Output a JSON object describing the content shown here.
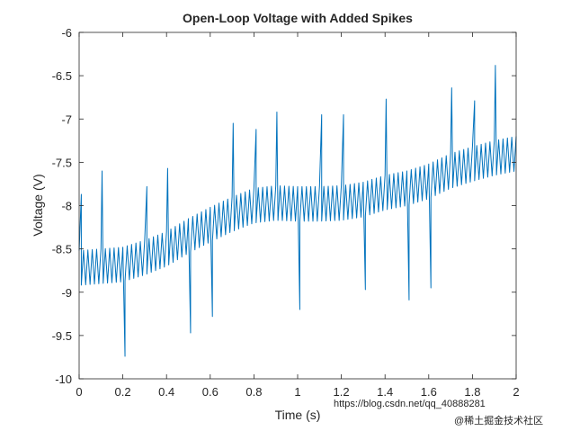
{
  "chart_data": {
    "type": "line",
    "title": "Open-Loop Voltage with Added Spikes",
    "xlabel": "Time (s)",
    "ylabel": "Voltage (V)",
    "xlim": [
      0,
      2
    ],
    "ylim": [
      -10,
      -6
    ],
    "xticks": [
      0,
      0.2,
      0.4,
      0.6,
      0.8,
      1,
      1.2,
      1.4,
      1.6,
      1.8,
      2
    ],
    "xtick_labels": [
      "0",
      "0.2",
      "0.4",
      "0.6",
      "0.8",
      "1",
      "1.2",
      "1.4",
      "1.6",
      "1.8",
      "2"
    ],
    "yticks": [
      -10,
      -9.5,
      -9,
      -8.5,
      -8,
      -7.5,
      -7,
      -6.5,
      -6
    ],
    "ytick_labels": [
      "-10",
      "-9.5",
      "-9",
      "-8.5",
      "-8",
      "-7.5",
      "-7",
      "-6.5",
      "-6"
    ],
    "grid": false,
    "line_color": "#0072BD",
    "series": [
      {
        "baseline": {
          "x": [
            0,
            0.1,
            0.2,
            0.3,
            0.4,
            0.5,
            0.6,
            0.7,
            0.8,
            0.9,
            1.0,
            1.1,
            1.2,
            1.3,
            1.4,
            1.5,
            1.6,
            1.7,
            1.8,
            1.9,
            2.0
          ],
          "y": [
            -8.72,
            -8.7,
            -8.68,
            -8.6,
            -8.5,
            -8.35,
            -8.22,
            -8.1,
            -8.0,
            -7.97,
            -7.98,
            -7.98,
            -7.97,
            -7.93,
            -7.85,
            -7.8,
            -7.72,
            -7.6,
            -7.52,
            -7.45,
            -7.4
          ]
        },
        "oscillation_amplitude": 0.2,
        "samples_per_second": 100,
        "spikes": [
          {
            "x": 0.01,
            "y": -7.87
          },
          {
            "x": 0.105,
            "y": -7.6
          },
          {
            "x": 0.21,
            "y": -9.74
          },
          {
            "x": 0.31,
            "y": -7.78
          },
          {
            "x": 0.405,
            "y": -7.57
          },
          {
            "x": 0.51,
            "y": -9.47
          },
          {
            "x": 0.61,
            "y": -9.28
          },
          {
            "x": 0.705,
            "y": -7.05
          },
          {
            "x": 0.81,
            "y": -7.12
          },
          {
            "x": 0.905,
            "y": -6.92
          },
          {
            "x": 1.01,
            "y": -9.2
          },
          {
            "x": 1.11,
            "y": -6.95
          },
          {
            "x": 1.21,
            "y": -6.95
          },
          {
            "x": 1.31,
            "y": -8.97
          },
          {
            "x": 1.405,
            "y": -6.77
          },
          {
            "x": 1.51,
            "y": -9.09
          },
          {
            "x": 1.61,
            "y": -8.95
          },
          {
            "x": 1.705,
            "y": -6.64
          },
          {
            "x": 1.81,
            "y": -6.79
          },
          {
            "x": 1.905,
            "y": -6.38
          }
        ]
      }
    ]
  },
  "watermark": {
    "line1": "https://blog.csdn.net/qq_40888281",
    "line2": "@稀土掘金技术社区"
  }
}
